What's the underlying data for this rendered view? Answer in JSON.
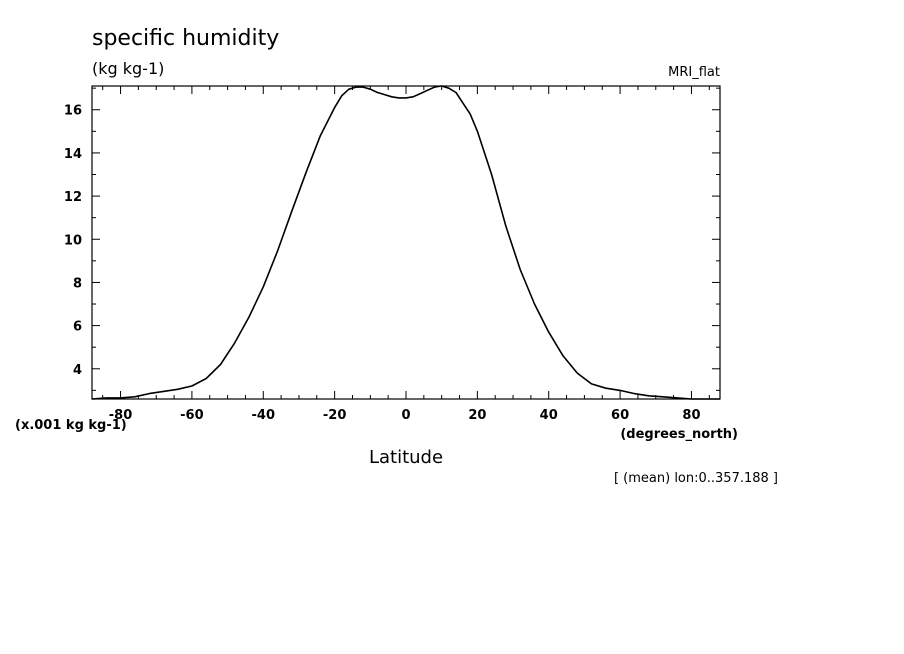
{
  "title": "specific humidity",
  "units_label": "(kg kg-1)",
  "model_label": "MRI_flat",
  "scale_label": "(x.001 kg kg-1)",
  "x_units_label": "(degrees_north)",
  "mean_label": "[ (mean) lon:0..357.188 ]",
  "chart_data": {
    "type": "line",
    "title": "specific humidity",
    "xlabel": "Latitude",
    "ylabel": "(kg kg-1)",
    "xlim": [
      -88,
      88
    ],
    "ylim": [
      2.6,
      17.1
    ],
    "xticks": [
      -80,
      -60,
      -40,
      -20,
      0,
      20,
      40,
      60,
      80
    ],
    "xtick_labels": [
      "-80",
      "-60",
      "-40",
      "-20",
      "0",
      "20",
      "40",
      "60",
      "80"
    ],
    "yticks": [
      4,
      6,
      8,
      10,
      12,
      14,
      16
    ],
    "ytick_labels": [
      "4",
      "6",
      "8",
      "10",
      "12",
      "14",
      "16"
    ],
    "grid": false,
    "series": [
      {
        "x": [
          -88,
          -84,
          -80,
          -76,
          -72,
          -68,
          -64,
          -60,
          -56,
          -52,
          -48,
          -44,
          -40,
          -36,
          -32,
          -28,
          -24,
          -20,
          -18,
          -16,
          -14,
          -12,
          -10,
          -8,
          -6,
          -4,
          -2,
          0,
          2,
          4,
          6,
          8,
          10,
          12,
          14,
          16,
          18,
          20,
          24,
          28,
          32,
          36,
          40,
          44,
          48,
          52,
          56,
          60,
          64,
          68,
          72,
          76,
          80,
          84,
          88
        ],
        "y": [
          2.6,
          2.65,
          2.65,
          2.7,
          2.85,
          2.95,
          3.05,
          3.2,
          3.55,
          4.2,
          5.2,
          6.4,
          7.8,
          9.45,
          11.3,
          13.1,
          14.8,
          16.1,
          16.65,
          16.95,
          17.05,
          17.05,
          16.95,
          16.8,
          16.7,
          16.6,
          16.55,
          16.55,
          16.6,
          16.75,
          16.9,
          17.05,
          17.1,
          17.0,
          16.8,
          16.3,
          15.8,
          15.0,
          13.0,
          10.6,
          8.6,
          7.0,
          5.7,
          4.6,
          3.8,
          3.3,
          3.1,
          3.0,
          2.85,
          2.75,
          2.7,
          2.65,
          2.6,
          2.6,
          2.6
        ]
      }
    ]
  }
}
